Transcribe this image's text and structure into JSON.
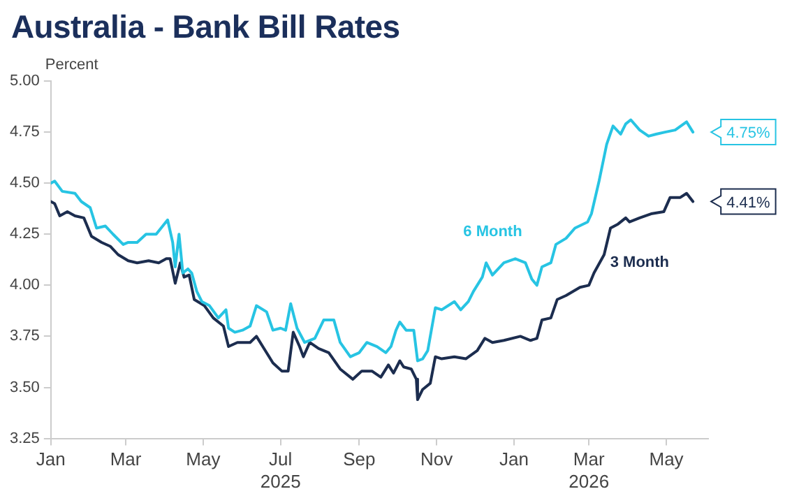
{
  "chart_data": {
    "type": "line",
    "title": "Australia - Bank Bill Rates",
    "ylabel": "Percent",
    "xlim": [
      "2025-01-01",
      "2026-06-03"
    ],
    "xticks": [
      {
        "value": "2025-01-01",
        "label": "Jan"
      },
      {
        "value": "2025-03-01",
        "label": "Mar"
      },
      {
        "value": "2025-05-01",
        "label": "May"
      },
      {
        "value": "2025-07-01",
        "label": "Jul\n2025"
      },
      {
        "value": "2025-09-01",
        "label": "Sep"
      },
      {
        "value": "2025-11-01",
        "label": "Nov"
      },
      {
        "value": "2026-01-01",
        "label": "Jan"
      },
      {
        "value": "2026-03-01",
        "label": "Mar\n2026"
      },
      {
        "value": "2026-05-01",
        "label": "May"
      }
    ],
    "ylim": [
      3.25,
      5.0
    ],
    "yticks": [
      {
        "value": 3.25,
        "label": "3.25"
      },
      {
        "value": 3.5,
        "label": "3.50"
      },
      {
        "value": 3.75,
        "label": "3.75"
      },
      {
        "value": 4.0,
        "label": "4.00"
      },
      {
        "value": 4.25,
        "label": "4.25"
      },
      {
        "value": 4.5,
        "label": "4.50"
      },
      {
        "value": 4.75,
        "label": "4.75"
      },
      {
        "value": 5.0,
        "label": "5.00"
      }
    ],
    "grid": false,
    "legend": false,
    "marker": "none",
    "line_style": "solid",
    "annotations": [
      {
        "text": "4.75%",
        "x": "2026-05-22",
        "y": 4.75
      },
      {
        "text": "4.41%",
        "x": "2026-05-22",
        "y": 4.41
      }
    ],
    "series": [
      {
        "name": "6 Month",
        "color": "#27c4e3",
        "x": [
          "2025-01-01",
          "2025-01-04",
          "2025-01-10",
          "2025-01-20",
          "2025-01-25",
          "2025-02-01",
          "2025-02-06",
          "2025-02-13",
          "2025-02-19",
          "2025-02-27",
          "2025-03-03",
          "2025-03-10",
          "2025-03-17",
          "2025-03-25",
          "2025-04-03",
          "2025-04-07",
          "2025-04-09",
          "2025-04-12",
          "2025-04-15",
          "2025-04-19",
          "2025-04-22",
          "2025-04-26",
          "2025-04-30",
          "2025-05-06",
          "2025-05-13",
          "2025-05-19",
          "2025-05-21",
          "2025-05-26",
          "2025-06-01",
          "2025-06-07",
          "2025-06-12",
          "2025-06-20",
          "2025-06-25",
          "2025-07-01",
          "2025-07-05",
          "2025-07-09",
          "2025-07-14",
          "2025-07-20",
          "2025-07-28",
          "2025-08-04",
          "2025-08-12",
          "2025-08-17",
          "2025-08-25",
          "2025-09-01",
          "2025-09-07",
          "2025-09-15",
          "2025-09-22",
          "2025-09-26",
          "2025-09-30",
          "2025-10-03",
          "2025-10-08",
          "2025-10-14",
          "2025-10-17",
          "2025-10-21",
          "2025-10-25",
          "2025-10-31",
          "2025-11-05",
          "2025-11-15",
          "2025-11-20",
          "2025-11-26",
          "2025-11-30",
          "2025-12-07",
          "2025-12-10",
          "2025-12-15",
          "2025-12-24",
          "2026-01-02",
          "2026-01-10",
          "2026-01-15",
          "2026-01-19",
          "2026-01-23",
          "2026-01-30",
          "2026-02-03",
          "2026-02-11",
          "2026-02-18",
          "2026-02-28",
          "2026-03-03",
          "2026-03-09",
          "2026-03-15",
          "2026-03-20",
          "2026-03-26",
          "2026-03-30",
          "2026-04-03",
          "2026-04-10",
          "2026-04-17",
          "2026-04-23",
          "2026-04-30",
          "2026-05-08",
          "2026-05-17",
          "2026-05-22"
        ],
        "values": [
          4.5,
          4.51,
          4.46,
          4.45,
          4.41,
          4.38,
          4.28,
          4.29,
          4.25,
          4.2,
          4.21,
          4.21,
          4.25,
          4.25,
          4.32,
          4.21,
          4.09,
          4.25,
          4.06,
          4.08,
          4.06,
          3.97,
          3.92,
          3.9,
          3.84,
          3.88,
          3.79,
          3.77,
          3.78,
          3.8,
          3.9,
          3.87,
          3.78,
          3.79,
          3.78,
          3.91,
          3.79,
          3.72,
          3.74,
          3.83,
          3.83,
          3.72,
          3.65,
          3.67,
          3.72,
          3.7,
          3.67,
          3.7,
          3.78,
          3.82,
          3.78,
          3.78,
          3.63,
          3.64,
          3.68,
          3.89,
          3.88,
          3.92,
          3.88,
          3.92,
          3.97,
          4.04,
          4.11,
          4.05,
          4.11,
          4.13,
          4.11,
          4.03,
          4.0,
          4.09,
          4.11,
          4.2,
          4.23,
          4.28,
          4.31,
          4.35,
          4.51,
          4.69,
          4.78,
          4.74,
          4.79,
          4.81,
          4.76,
          4.73,
          4.74,
          4.75,
          4.76,
          4.8,
          4.75
        ]
      },
      {
        "name": "3 Month",
        "color": "#1c2d4f",
        "x": [
          "2025-01-01",
          "2025-01-04",
          "2025-01-08",
          "2025-01-14",
          "2025-01-20",
          "2025-01-27",
          "2025-02-02",
          "2025-02-10",
          "2025-02-17",
          "2025-02-23",
          "2025-03-03",
          "2025-03-10",
          "2025-03-19",
          "2025-03-27",
          "2025-04-02",
          "2025-04-05",
          "2025-04-09",
          "2025-04-13",
          "2025-04-16",
          "2025-04-20",
          "2025-04-24",
          "2025-05-02",
          "2025-05-09",
          "2025-05-17",
          "2025-05-21",
          "2025-05-28",
          "2025-06-07",
          "2025-06-12",
          "2025-06-18",
          "2025-06-25",
          "2025-07-02",
          "2025-07-07",
          "2025-07-11",
          "2025-07-16",
          "2025-07-19",
          "2025-07-24",
          "2025-07-31",
          "2025-08-08",
          "2025-08-17",
          "2025-08-27",
          "2025-09-03",
          "2025-09-11",
          "2025-09-18",
          "2025-09-24",
          "2025-09-28",
          "2025-10-03",
          "2025-10-06",
          "2025-10-12",
          "2025-10-16",
          "2025-10-17",
          "2025-10-21",
          "2025-10-27",
          "2025-10-31",
          "2025-11-05",
          "2025-11-15",
          "2025-11-24",
          "2025-12-03",
          "2025-12-09",
          "2025-12-15",
          "2025-12-24",
          "2026-01-06",
          "2026-01-14",
          "2026-01-19",
          "2026-01-23",
          "2026-01-30",
          "2026-02-04",
          "2026-02-11",
          "2026-02-22",
          "2026-03-01",
          "2026-03-05",
          "2026-03-13",
          "2026-03-18",
          "2026-03-24",
          "2026-03-30",
          "2026-04-02",
          "2026-04-10",
          "2026-04-19",
          "2026-04-29",
          "2026-05-04",
          "2026-05-12",
          "2026-05-17",
          "2026-05-22"
        ],
        "values": [
          4.41,
          4.4,
          4.34,
          4.36,
          4.34,
          4.33,
          4.24,
          4.21,
          4.19,
          4.15,
          4.12,
          4.11,
          4.12,
          4.11,
          4.13,
          4.13,
          4.01,
          4.11,
          4.04,
          4.05,
          3.93,
          3.9,
          3.84,
          3.8,
          3.7,
          3.72,
          3.72,
          3.75,
          3.69,
          3.62,
          3.58,
          3.58,
          3.77,
          3.7,
          3.65,
          3.72,
          3.69,
          3.67,
          3.59,
          3.54,
          3.58,
          3.58,
          3.55,
          3.61,
          3.57,
          3.63,
          3.6,
          3.59,
          3.54,
          3.44,
          3.49,
          3.52,
          3.65,
          3.64,
          3.65,
          3.64,
          3.68,
          3.74,
          3.72,
          3.73,
          3.75,
          3.73,
          3.74,
          3.83,
          3.84,
          3.93,
          3.95,
          3.99,
          4.0,
          4.06,
          4.15,
          4.28,
          4.3,
          4.33,
          4.31,
          4.33,
          4.35,
          4.36,
          4.43,
          4.43,
          4.45,
          4.41
        ]
      }
    ]
  }
}
